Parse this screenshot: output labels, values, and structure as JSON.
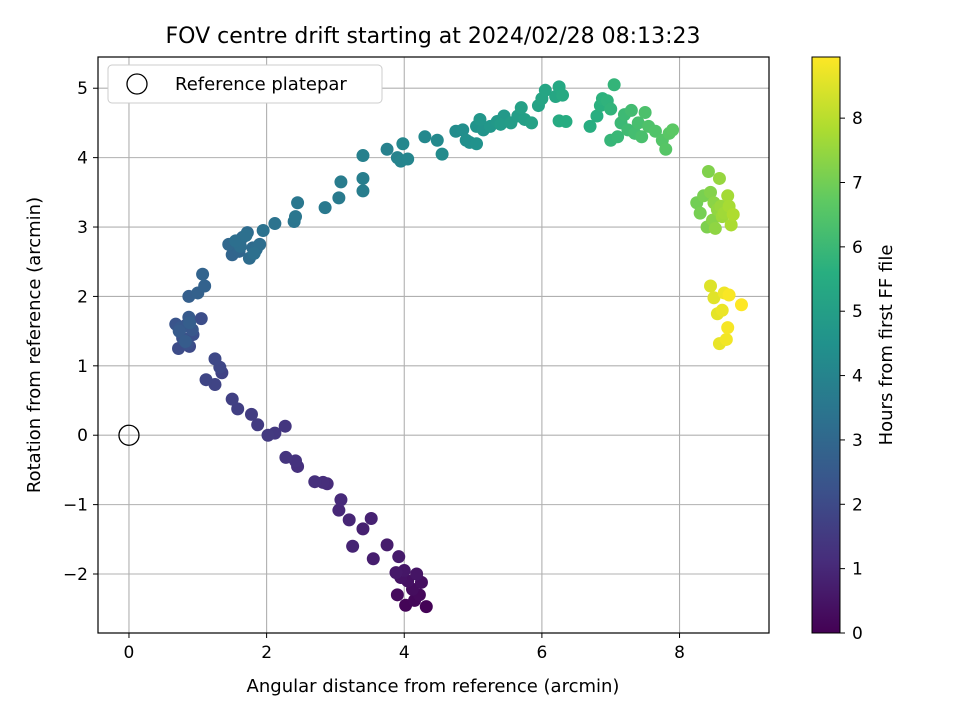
{
  "chart_data": {
    "type": "scatter",
    "title": "FOV centre drift starting at 2024/02/28 08:13:23",
    "xlabel": "Angular distance from reference (arcmin)",
    "ylabel": "Rotation from reference (arcmin)",
    "xlim": [
      -0.45,
      9.3
    ],
    "ylim": [
      -2.85,
      5.45
    ],
    "xticks": [
      0,
      2,
      4,
      6,
      8
    ],
    "yticks": [
      -2,
      -1,
      0,
      1,
      2,
      3,
      4,
      5
    ],
    "grid": true,
    "legend": {
      "position": "top-left",
      "entries": [
        "Reference platepar"
      ]
    },
    "reference_point": {
      "x": 0,
      "y": 0
    },
    "colorbar": {
      "label": "Hours from first FF file",
      "range": [
        0,
        8.95
      ],
      "ticks": [
        0,
        1,
        2,
        3,
        4,
        5,
        6,
        7,
        8
      ],
      "colormap": "viridis"
    },
    "points": [
      [
        4.32,
        -2.47,
        0.05
      ],
      [
        4.02,
        -2.45,
        0.1
      ],
      [
        4.15,
        -2.38,
        0.15
      ],
      [
        4.22,
        -2.3,
        0.2
      ],
      [
        3.9,
        -2.3,
        0.25
      ],
      [
        4.12,
        -2.22,
        0.3
      ],
      [
        4.25,
        -2.12,
        0.35
      ],
      [
        4.05,
        -2.1,
        0.4
      ],
      [
        3.95,
        -2.05,
        0.45
      ],
      [
        4.18,
        -2.0,
        0.5
      ],
      [
        4.0,
        -1.95,
        0.55
      ],
      [
        3.88,
        -1.98,
        0.6
      ],
      [
        3.92,
        -1.75,
        0.65
      ],
      [
        3.75,
        -1.58,
        0.7
      ],
      [
        3.55,
        -1.78,
        0.75
      ],
      [
        3.4,
        -1.35,
        0.8
      ],
      [
        3.52,
        -1.2,
        0.85
      ],
      [
        3.25,
        -1.6,
        0.9
      ],
      [
        3.2,
        -1.22,
        0.95
      ],
      [
        3.05,
        -1.08,
        1.0
      ],
      [
        3.08,
        -0.93,
        1.05
      ],
      [
        2.88,
        -0.7,
        1.1
      ],
      [
        2.82,
        -0.68,
        1.15
      ],
      [
        2.7,
        -0.67,
        1.2
      ],
      [
        2.45,
        -0.45,
        1.25
      ],
      [
        2.42,
        -0.37,
        1.3
      ],
      [
        2.28,
        -0.32,
        1.35
      ],
      [
        2.27,
        0.13,
        1.4
      ],
      [
        2.12,
        0.03,
        1.45
      ],
      [
        2.02,
        0.0,
        1.5
      ],
      [
        1.87,
        0.15,
        1.55
      ],
      [
        1.78,
        0.3,
        1.6
      ],
      [
        1.58,
        0.38,
        1.65
      ],
      [
        1.5,
        0.52,
        1.7
      ],
      [
        1.35,
        0.9,
        1.75
      ],
      [
        1.25,
        0.73,
        1.8
      ],
      [
        1.12,
        0.8,
        1.85
      ],
      [
        1.32,
        0.98,
        1.9
      ],
      [
        1.25,
        1.1,
        1.95
      ],
      [
        0.88,
        1.28,
        2.0
      ],
      [
        0.72,
        1.25,
        2.05
      ],
      [
        1.05,
        1.68,
        2.1
      ],
      [
        0.93,
        1.45,
        2.15
      ],
      [
        0.85,
        1.32,
        2.2
      ],
      [
        0.78,
        1.4,
        2.25
      ],
      [
        0.68,
        1.6,
        2.3
      ],
      [
        0.82,
        1.58,
        2.35
      ],
      [
        0.92,
        1.52,
        2.4
      ],
      [
        0.75,
        1.55,
        2.45
      ],
      [
        0.87,
        1.7,
        2.5
      ],
      [
        0.73,
        1.5,
        2.55
      ],
      [
        0.82,
        1.35,
        2.6
      ],
      [
        0.88,
        1.62,
        2.65
      ],
      [
        0.87,
        2.0,
        2.7
      ],
      [
        1.0,
        2.05,
        2.75
      ],
      [
        1.1,
        2.15,
        2.8
      ],
      [
        1.07,
        2.32,
        2.85
      ],
      [
        1.5,
        2.6,
        2.9
      ],
      [
        1.6,
        2.65,
        2.95
      ],
      [
        1.45,
        2.75,
        3.0
      ],
      [
        1.65,
        2.85,
        3.05
      ],
      [
        1.72,
        2.92,
        3.1
      ],
      [
        1.8,
        2.7,
        3.12
      ],
      [
        1.75,
        2.55,
        3.15
      ],
      [
        1.85,
        2.68,
        3.18
      ],
      [
        1.9,
        2.75,
        3.2
      ],
      [
        1.62,
        2.72,
        3.22
      ],
      [
        1.55,
        2.8,
        3.25
      ],
      [
        1.7,
        2.88,
        3.28
      ],
      [
        1.82,
        2.62,
        3.3
      ],
      [
        1.95,
        2.95,
        3.35
      ],
      [
        2.12,
        3.05,
        3.4
      ],
      [
        2.4,
        3.08,
        3.45
      ],
      [
        2.42,
        3.15,
        3.5
      ],
      [
        2.45,
        3.35,
        3.55
      ],
      [
        2.85,
        3.28,
        3.6
      ],
      [
        3.05,
        3.42,
        3.65
      ],
      [
        3.08,
        3.65,
        3.7
      ],
      [
        3.4,
        3.52,
        3.75
      ],
      [
        3.4,
        3.7,
        3.8
      ],
      [
        3.4,
        4.03,
        3.85
      ],
      [
        3.75,
        4.12,
        3.9
      ],
      [
        3.9,
        4.0,
        3.95
      ],
      [
        3.95,
        3.95,
        4.0
      ],
      [
        4.05,
        3.98,
        4.05
      ],
      [
        3.98,
        4.2,
        4.1
      ],
      [
        4.3,
        4.3,
        4.15
      ],
      [
        4.48,
        4.25,
        4.2
      ],
      [
        4.55,
        4.05,
        4.25
      ],
      [
        4.75,
        4.38,
        4.3
      ],
      [
        4.85,
        4.4,
        4.35
      ],
      [
        4.9,
        4.25,
        4.4
      ],
      [
        4.95,
        4.22,
        4.45
      ],
      [
        5.05,
        4.2,
        4.5
      ],
      [
        5.05,
        4.45,
        4.55
      ],
      [
        5.15,
        4.4,
        4.6
      ],
      [
        5.1,
        4.55,
        4.65
      ],
      [
        5.25,
        4.45,
        4.7
      ],
      [
        5.35,
        4.52,
        4.75
      ],
      [
        5.45,
        4.6,
        4.8
      ],
      [
        5.4,
        4.48,
        4.85
      ],
      [
        5.55,
        4.5,
        4.9
      ],
      [
        5.65,
        4.6,
        4.95
      ],
      [
        5.75,
        4.55,
        5.0
      ],
      [
        5.7,
        4.72,
        5.05
      ],
      [
        5.85,
        4.5,
        5.1
      ],
      [
        5.95,
        4.75,
        5.15
      ],
      [
        6.0,
        4.85,
        5.2
      ],
      [
        6.05,
        4.97,
        5.25
      ],
      [
        6.2,
        4.88,
        5.3
      ],
      [
        6.25,
        5.02,
        5.35
      ],
      [
        6.3,
        4.9,
        5.4
      ],
      [
        6.25,
        4.53,
        5.45
      ],
      [
        6.35,
        4.52,
        5.5
      ],
      [
        6.7,
        4.45,
        5.55
      ],
      [
        6.8,
        4.6,
        5.6
      ],
      [
        6.85,
        4.75,
        5.65
      ],
      [
        6.88,
        4.85,
        5.7
      ],
      [
        6.95,
        4.82,
        5.75
      ],
      [
        7.0,
        4.7,
        5.8
      ],
      [
        7.05,
        5.05,
        5.85
      ],
      [
        7.0,
        4.25,
        5.9
      ],
      [
        7.1,
        4.3,
        5.95
      ],
      [
        7.15,
        4.5,
        6.0
      ],
      [
        7.2,
        4.62,
        6.05
      ],
      [
        7.25,
        4.4,
        6.1
      ],
      [
        7.3,
        4.68,
        6.15
      ],
      [
        7.35,
        4.35,
        6.2
      ],
      [
        7.4,
        4.5,
        6.25
      ],
      [
        7.45,
        4.3,
        6.3
      ],
      [
        7.5,
        4.65,
        6.35
      ],
      [
        7.55,
        4.45,
        6.4
      ],
      [
        7.65,
        4.38,
        6.45
      ],
      [
        7.75,
        4.25,
        6.5
      ],
      [
        7.8,
        4.12,
        6.55
      ],
      [
        7.85,
        4.35,
        6.6
      ],
      [
        7.9,
        4.4,
        6.65
      ],
      [
        8.25,
        3.35,
        7.0
      ],
      [
        8.3,
        3.2,
        7.05
      ],
      [
        8.35,
        3.45,
        7.1
      ],
      [
        8.4,
        3.0,
        7.15
      ],
      [
        8.42,
        3.8,
        7.2
      ],
      [
        8.45,
        3.5,
        7.25
      ],
      [
        8.48,
        3.1,
        7.3
      ],
      [
        8.5,
        3.35,
        7.35
      ],
      [
        8.52,
        2.98,
        7.4
      ],
      [
        8.55,
        3.25,
        7.45
      ],
      [
        8.58,
        3.7,
        7.5
      ],
      [
        8.6,
        3.3,
        7.55
      ],
      [
        8.62,
        3.15,
        7.6
      ],
      [
        8.65,
        3.2,
        7.65
      ],
      [
        8.7,
        3.45,
        7.7
      ],
      [
        8.72,
        3.3,
        7.75
      ],
      [
        8.75,
        3.03,
        7.8
      ],
      [
        8.78,
        3.18,
        7.85
      ],
      [
        8.45,
        2.15,
        8.5
      ],
      [
        8.5,
        1.98,
        8.55
      ],
      [
        8.55,
        1.75,
        8.6
      ],
      [
        8.58,
        1.32,
        8.65
      ],
      [
        8.62,
        1.8,
        8.7
      ],
      [
        8.65,
        2.05,
        8.75
      ],
      [
        8.68,
        1.38,
        8.8
      ],
      [
        8.7,
        1.55,
        8.85
      ],
      [
        8.72,
        2.02,
        8.9
      ],
      [
        8.9,
        1.88,
        8.95
      ]
    ]
  }
}
